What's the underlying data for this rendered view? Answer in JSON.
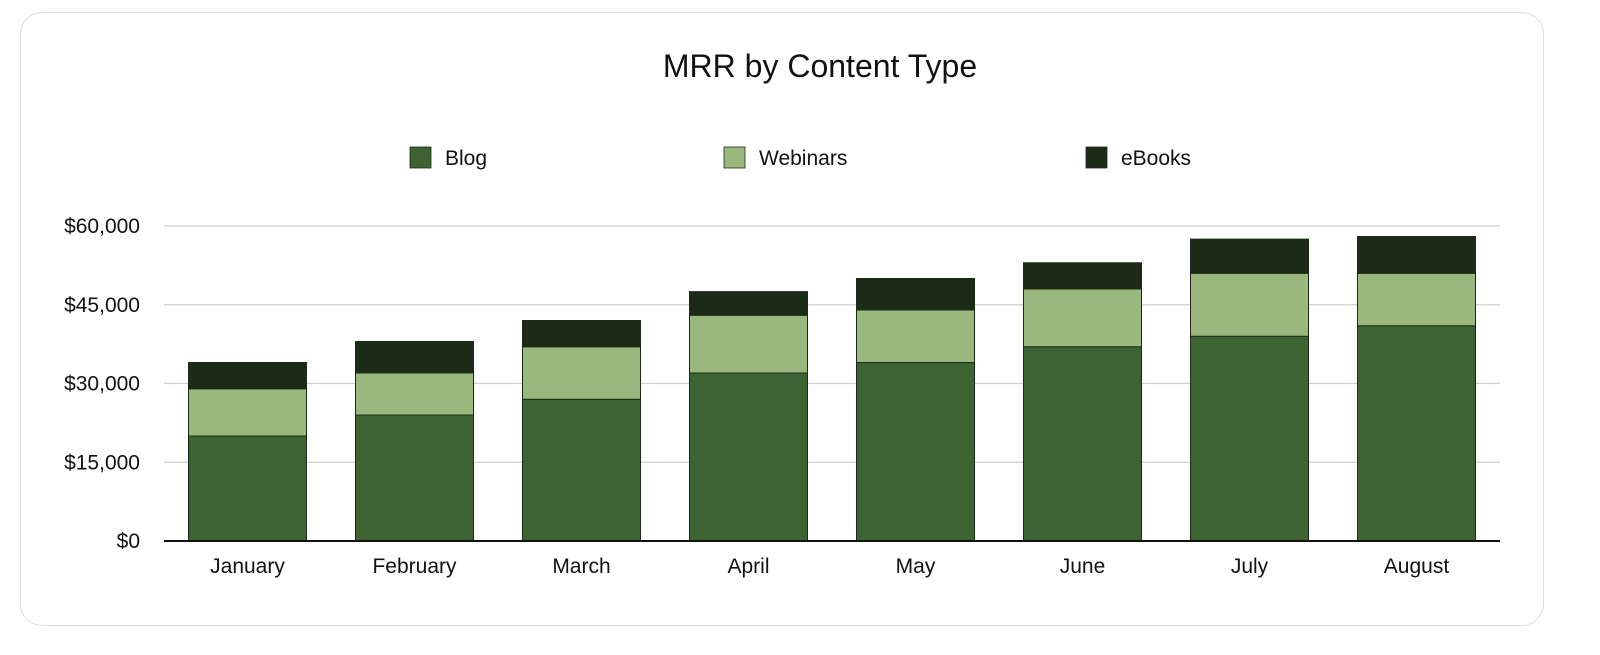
{
  "chart_data": {
    "type": "bar",
    "stacked": true,
    "title": "MRR by Content Type",
    "categories": [
      "January",
      "February",
      "March",
      "April",
      "May",
      "June",
      "July",
      "August"
    ],
    "series": [
      {
        "name": "Blog",
        "values": [
          20000,
          24000,
          27000,
          32000,
          34000,
          37000,
          39000,
          41000
        ]
      },
      {
        "name": "Webinars",
        "values": [
          9000,
          8000,
          10000,
          11000,
          10000,
          11000,
          12000,
          10000
        ]
      },
      {
        "name": "eBooks",
        "values": [
          5000,
          6000,
          5000,
          4500,
          6000,
          5000,
          6500,
          7000
        ]
      }
    ],
    "ylim": [
      0,
      60000
    ],
    "yticks": [
      0,
      15000,
      30000,
      45000,
      60000
    ],
    "ytick_labels": [
      "$0",
      "$15,000",
      "$30,000",
      "$45,000",
      "$60,000"
    ],
    "colors": [
      "#3e6332",
      "#9ab77d",
      "#1b2b18"
    ],
    "legend_position": "top",
    "grid": true
  }
}
